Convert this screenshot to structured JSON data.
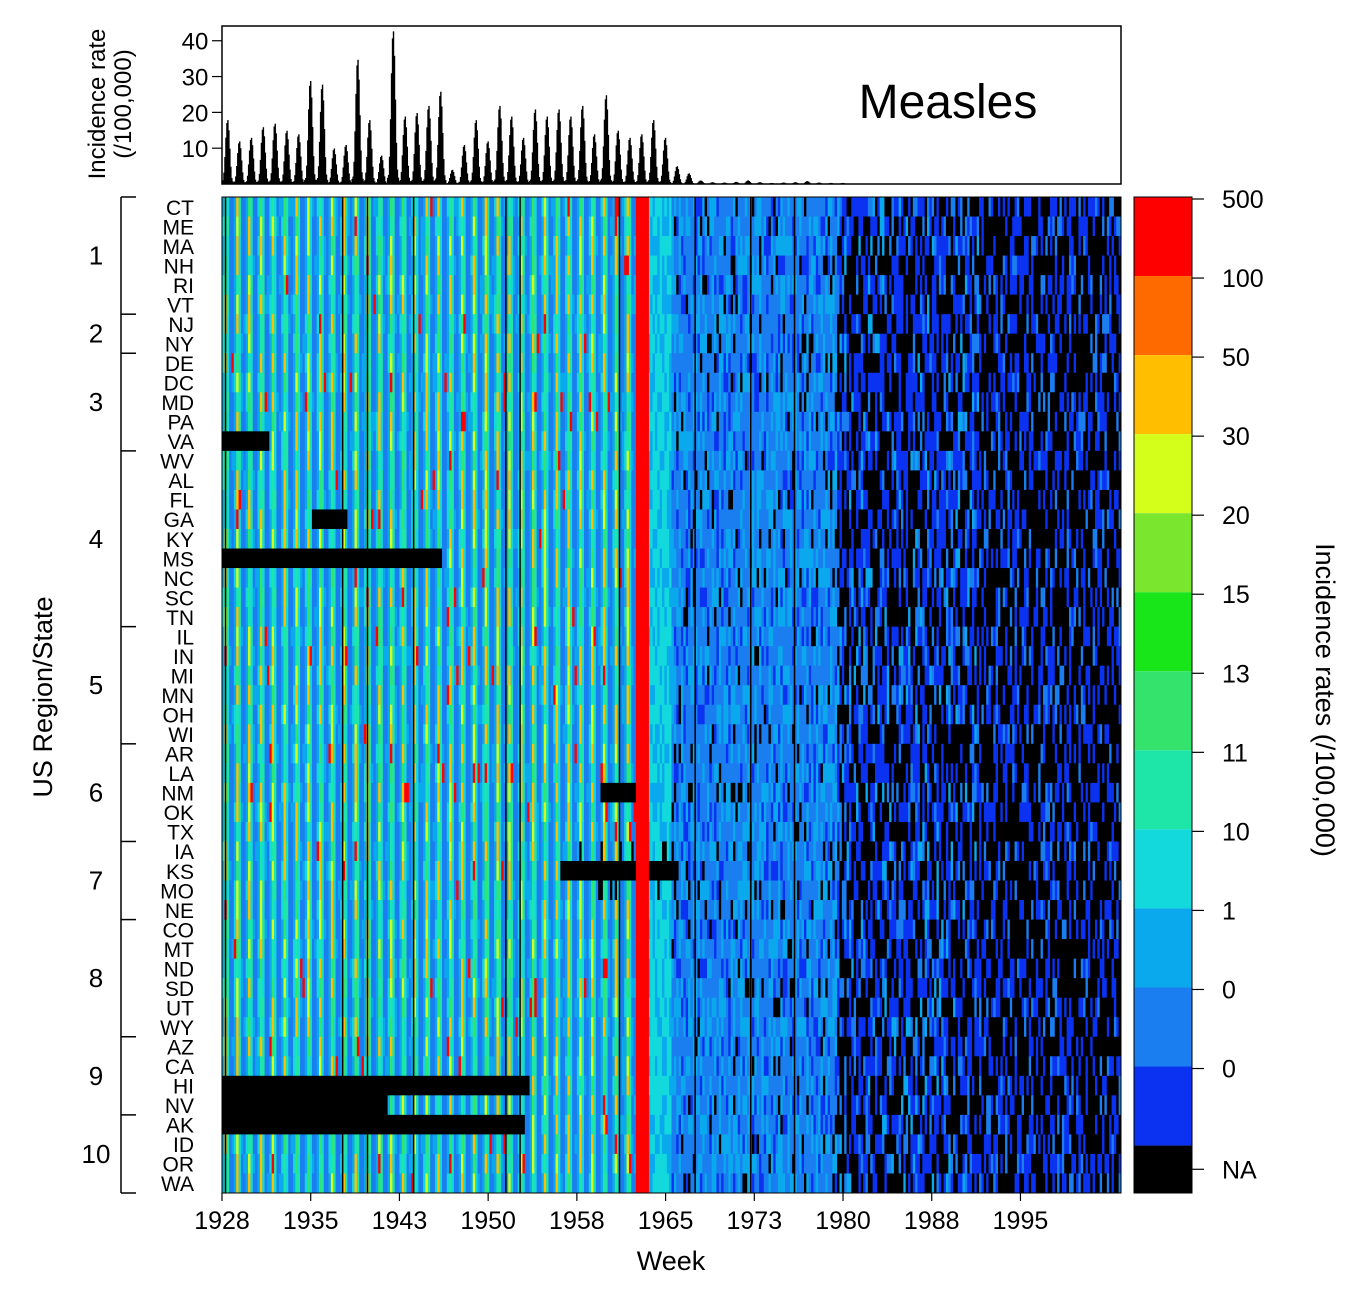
{
  "chart_data": [
    {
      "type": "bar",
      "title": "Measles",
      "ylabel": "Incidence rate",
      "ylabel_units": "(/100,000)",
      "yticks": [
        10,
        20,
        30,
        40
      ],
      "ylim": [
        0,
        43
      ],
      "xlim": [
        1928,
        2004
      ],
      "series": [
        {
          "x": [
            1928,
            1929,
            1930,
            1931,
            1932,
            1933,
            1934,
            1935,
            1936,
            1937,
            1938,
            1939,
            1940,
            1941,
            1942,
            1943,
            1944,
            1945,
            1946,
            1947,
            1948,
            1949,
            1950,
            1951,
            1952,
            1953,
            1954,
            1955,
            1956,
            1957,
            1958,
            1959,
            1960,
            1961,
            1962,
            1963,
            1964,
            1965,
            1966,
            1967,
            1968,
            1969,
            1970,
            1971,
            1972,
            1973,
            1974,
            1975,
            1976,
            1977,
            1978,
            1979,
            1980
          ],
          "values": [
            18,
            12,
            13,
            16,
            17,
            15,
            14,
            29,
            28,
            10,
            11,
            35,
            18,
            8,
            43,
            19,
            20,
            22,
            26,
            4,
            11,
            18,
            12,
            22,
            19,
            13,
            21,
            19,
            21,
            19,
            22,
            14,
            25,
            15,
            13,
            14,
            18,
            13,
            5,
            3,
            1,
            0.5,
            0.4,
            0.6,
            1,
            0.5,
            0.3,
            0.4,
            0.5,
            0.8,
            0.4,
            0.3,
            0.3
          ]
        }
      ]
    },
    {
      "type": "heatmap",
      "xlabel": "Week",
      "ylabel": "US Region/State",
      "x_ticks": [
        "1928",
        "1935",
        "1943",
        "1950",
        "1958",
        "1965",
        "1973",
        "1980",
        "1988",
        "1995"
      ],
      "x_tick_years": [
        1928,
        1935.5,
        1943,
        1950.5,
        1958,
        1965.5,
        1973,
        1980.5,
        1988,
        1995.5
      ],
      "xlim": [
        1928,
        2004
      ],
      "vaccine_line_year": 1963.5,
      "rows": [
        "CT",
        "ME",
        "MA",
        "NH",
        "RI",
        "VT",
        "NJ",
        "NY",
        "DE",
        "DC",
        "MD",
        "PA",
        "VA",
        "WV",
        "AL",
        "FL",
        "GA",
        "KY",
        "MS",
        "NC",
        "SC",
        "TN",
        "IL",
        "IN",
        "MI",
        "MN",
        "OH",
        "WI",
        "AR",
        "LA",
        "NM",
        "OK",
        "TX",
        "IA",
        "KS",
        "MO",
        "NE",
        "CO",
        "MT",
        "ND",
        "SD",
        "UT",
        "WY",
        "AZ",
        "CA",
        "HI",
        "NV",
        "AK",
        "ID",
        "OR",
        "WA"
      ],
      "regions": [
        {
          "label": "1",
          "states": [
            "CT",
            "ME",
            "MA",
            "NH",
            "RI",
            "VT"
          ]
        },
        {
          "label": "2",
          "states": [
            "NJ",
            "NY"
          ]
        },
        {
          "label": "3",
          "states": [
            "DE",
            "DC",
            "MD",
            "PA",
            "VA"
          ]
        },
        {
          "label": "4",
          "states": [
            "WV",
            "AL",
            "FL",
            "GA",
            "KY",
            "MS",
            "NC",
            "SC",
            "TN"
          ]
        },
        {
          "label": "5",
          "states": [
            "IL",
            "IN",
            "MI",
            "MN",
            "OH",
            "WI"
          ]
        },
        {
          "label": "6",
          "states": [
            "AR",
            "LA",
            "NM",
            "OK",
            "TX"
          ]
        },
        {
          "label": "7",
          "states": [
            "IA",
            "KS",
            "MO",
            "NE"
          ]
        },
        {
          "label": "8",
          "states": [
            "CO",
            "MT",
            "ND",
            "SD",
            "UT",
            "WY"
          ]
        },
        {
          "label": "9",
          "states": [
            "AZ",
            "CA",
            "HI",
            "NV"
          ]
        },
        {
          "label": "10",
          "states": [
            "AK",
            "ID",
            "OR",
            "WA"
          ]
        }
      ],
      "colorbar": {
        "title": "Incidence rates (/100,000)",
        "bins": [
          {
            "label": "500",
            "color": "#ff0000"
          },
          {
            "label": "100",
            "color": "#ff6a00"
          },
          {
            "label": "50",
            "color": "#ffbf00"
          },
          {
            "label": "30",
            "color": "#d4ff1a"
          },
          {
            "label": "20",
            "color": "#7ae62e"
          },
          {
            "label": "15",
            "color": "#19e619"
          },
          {
            "label": "13",
            "color": "#33e36b"
          },
          {
            "label": "11",
            "color": "#1ee6a8"
          },
          {
            "label": "10",
            "color": "#13d9dc"
          },
          {
            "label": "1",
            "color": "#0aa8ec"
          },
          {
            "label": "0",
            "color": "#1a7ef0"
          },
          {
            "label": "0",
            "color": "#0a32f0"
          },
          {
            "label": "NA",
            "color": "#000000"
          }
        ]
      }
    }
  ]
}
